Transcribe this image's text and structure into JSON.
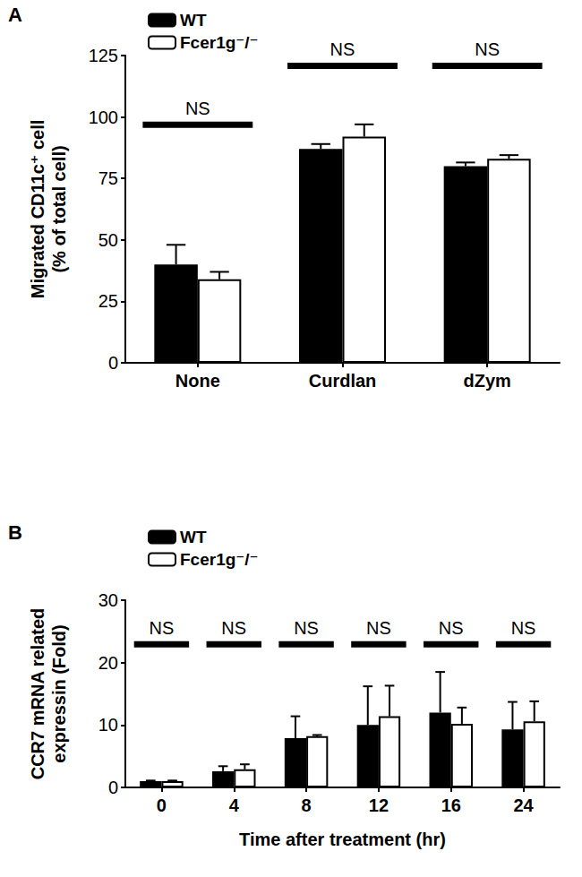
{
  "chart_data": [
    {
      "type": "bar",
      "title": "A",
      "y_label": "Migrated CD11c⁺ cell\n(% of total cell)",
      "categories": [
        "None",
        "Curdlan",
        "dZym"
      ],
      "series": [
        {
          "name": "WT",
          "color": "#000000",
          "values": [
            40,
            87,
            80
          ],
          "errors": [
            8,
            2,
            1.5
          ]
        },
        {
          "name": "Fcer1g⁻/⁻",
          "color": "#ffffff",
          "values": [
            34,
            92,
            83
          ],
          "errors": [
            3,
            5,
            1.5
          ]
        }
      ],
      "ylim": [
        0,
        125
      ],
      "yticks": [
        0,
        25,
        50,
        75,
        100,
        125
      ],
      "annotations": [
        {
          "category": "None",
          "y": 97,
          "text": "NS"
        },
        {
          "category": "Curdlan",
          "y": 121,
          "text": "NS"
        },
        {
          "category": "dZym",
          "y": 121,
          "text": "NS"
        }
      ],
      "legend": "upper left",
      "grid": false
    },
    {
      "type": "bar",
      "title": "B",
      "y_label": "CCR7 mRNA related\nexpressin (Fold)",
      "x_label": "Time after treatment (hr)",
      "categories": [
        "0",
        "4",
        "8",
        "12",
        "16",
        "24"
      ],
      "series": [
        {
          "name": "WT",
          "color": "#000000",
          "values": [
            1,
            2.6,
            7.9,
            10,
            12,
            9.3
          ],
          "errors": [
            0.1,
            0.8,
            3.5,
            6.2,
            6.5,
            4.4
          ]
        },
        {
          "name": "Fcer1g⁻/⁻",
          "color": "#ffffff",
          "values": [
            1,
            2.9,
            8.2,
            11.4,
            10.2,
            10.6
          ],
          "errors": [
            0.1,
            0.8,
            0.2,
            4.9,
            2.6,
            3.2
          ]
        }
      ],
      "ylim": [
        0,
        30
      ],
      "yticks": [
        0,
        10,
        20,
        30
      ],
      "annotations": [
        {
          "category": "0",
          "y": 23,
          "text": "NS"
        },
        {
          "category": "4",
          "y": 23,
          "text": "NS"
        },
        {
          "category": "8",
          "y": 23,
          "text": "NS"
        },
        {
          "category": "12",
          "y": 23,
          "text": "NS"
        },
        {
          "category": "16",
          "y": 23,
          "text": "NS"
        },
        {
          "category": "24",
          "y": 23,
          "text": "NS"
        }
      ],
      "legend": "upper left",
      "grid": false
    }
  ]
}
